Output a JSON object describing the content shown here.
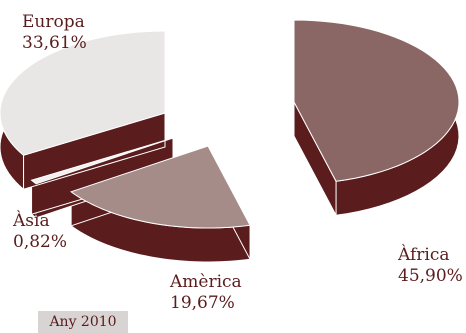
{
  "chart_data": {
    "type": "pie",
    "slices": [
      {
        "name": "Àfrica",
        "label_percent": "45,90%",
        "value": 45.9,
        "top_color": "#8a6764",
        "side_color": "#5a1c1c"
      },
      {
        "name": "Amèrica",
        "label_percent": "19,67%",
        "value": 19.67,
        "top_color": "#a68c89",
        "side_color": "#5a1c1c"
      },
      {
        "name": "Àsia",
        "label_percent": "0,82%",
        "value": 0.82,
        "top_color": "#f2f0f0",
        "side_color": "#5a1c1c"
      },
      {
        "name": "Europa",
        "label_percent": "33,61%",
        "value": 33.61,
        "top_color": "#e9e6e6",
        "side_color": "#5a1c1c"
      }
    ],
    "year_label": "Any 2010",
    "text_color": "#5a1c1c",
    "year_box_color": "#d8d4d3"
  }
}
